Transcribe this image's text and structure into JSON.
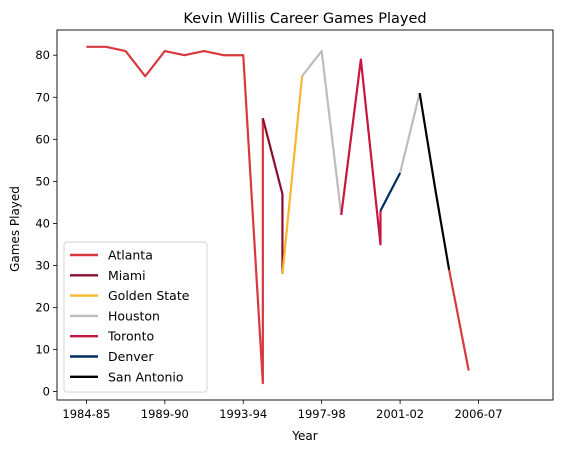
{
  "chart_data": {
    "type": "line",
    "title": "Kevin Willis Career Games Played",
    "xlabel": "Year",
    "ylabel": "Games Played",
    "ylim": [
      -2,
      86
    ],
    "xlim": [
      -1.5,
      23.8
    ],
    "grid": false,
    "legend_position": "lower-left",
    "x_ticks": [
      {
        "pos": 0,
        "label": "1984-85"
      },
      {
        "pos": 4,
        "label": "1989-90"
      },
      {
        "pos": 8,
        "label": "1993-94"
      },
      {
        "pos": 12,
        "label": "1997-98"
      },
      {
        "pos": 16,
        "label": "2001-02"
      },
      {
        "pos": 20,
        "label": "2006-07"
      }
    ],
    "y_ticks": [
      0,
      10,
      20,
      30,
      40,
      50,
      60,
      70,
      80
    ],
    "series": [
      {
        "name": "Atlanta",
        "color": "#d8393e",
        "points": [
          [
            0,
            82
          ],
          [
            1,
            82
          ],
          [
            2,
            81
          ],
          [
            3,
            75
          ],
          [
            4,
            81
          ],
          [
            5,
            80
          ],
          [
            6,
            81
          ],
          [
            7,
            80
          ],
          [
            8,
            80
          ],
          [
            9,
            2
          ],
          [
            9,
            65
          ]
        ]
      },
      {
        "name": "Atlanta",
        "color": "#d8393e",
        "points": [
          [
            18.5,
            29
          ],
          [
            19.5,
            5
          ]
        ]
      },
      {
        "name": "Miami",
        "color": "#8a0d2f",
        "points": [
          [
            9,
            65
          ],
          [
            10,
            47
          ],
          [
            10,
            28
          ]
        ]
      },
      {
        "name": "Golden State",
        "color": "#f7b731",
        "points": [
          [
            10,
            28
          ],
          [
            11,
            75
          ]
        ]
      },
      {
        "name": "Houston",
        "color": "#bdbdbd",
        "points": [
          [
            11,
            75
          ],
          [
            12,
            81
          ],
          [
            13,
            42
          ]
        ]
      },
      {
        "name": "Houston",
        "color": "#bdbdbd",
        "points": [
          [
            16,
            52
          ],
          [
            17,
            71
          ]
        ]
      },
      {
        "name": "Toronto",
        "color": "#c8173f",
        "points": [
          [
            13,
            42
          ],
          [
            14,
            79
          ],
          [
            15,
            35
          ],
          [
            15,
            43
          ]
        ]
      },
      {
        "name": "Denver",
        "color": "#002d62",
        "points": [
          [
            15,
            43
          ],
          [
            16,
            52
          ]
        ]
      },
      {
        "name": "San Antonio",
        "color": "#000000",
        "points": [
          [
            17,
            71
          ],
          [
            17.8,
            48
          ],
          [
            18.5,
            29
          ]
        ]
      }
    ],
    "legend": [
      {
        "name": "Atlanta",
        "color": "#d8393e"
      },
      {
        "name": "Miami",
        "color": "#8a0d2f"
      },
      {
        "name": "Golden State",
        "color": "#f7b731"
      },
      {
        "name": "Houston",
        "color": "#bdbdbd"
      },
      {
        "name": "Toronto",
        "color": "#c8173f"
      },
      {
        "name": "Denver",
        "color": "#002d62"
      },
      {
        "name": "San Antonio",
        "color": "#000000"
      }
    ]
  }
}
